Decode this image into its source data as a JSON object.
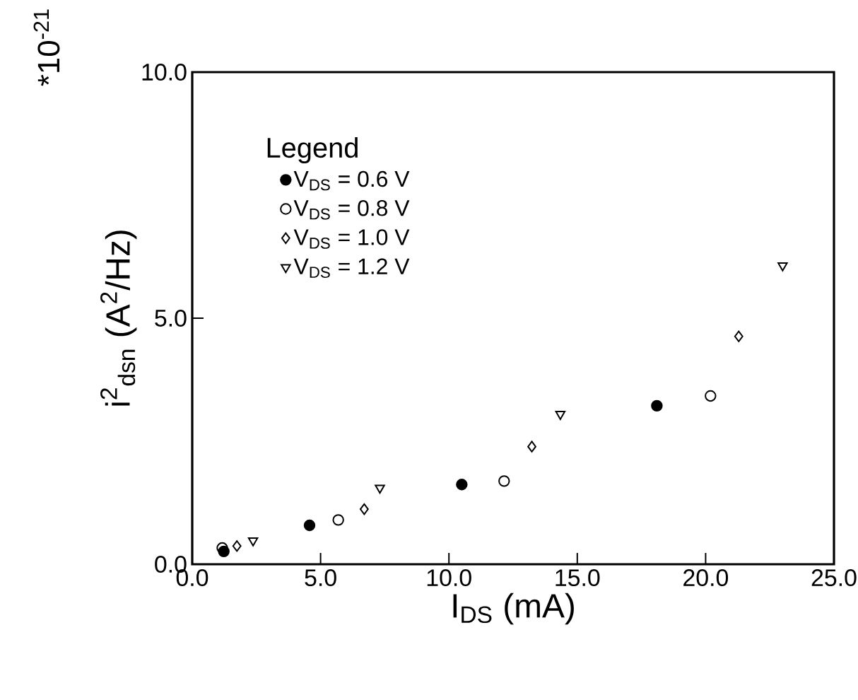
{
  "chart_data": {
    "type": "scatter",
    "xlabel": "I$_{DS}$ (mA)",
    "ylabel": "i$^{2}$$_{dsn}$ (A$^{2}$/Hz)",
    "legend_title": "Legend",
    "annotations": [
      "*10$^{-21}$"
    ],
    "xlim": [
      0,
      25
    ],
    "ylim": [
      0,
      10
    ],
    "xticks": [
      {
        "value": 0,
        "label": "0.0"
      },
      {
        "value": 5,
        "label": "5.0"
      },
      {
        "value": 10,
        "label": "10.0"
      },
      {
        "value": 15,
        "label": "15.0"
      },
      {
        "value": 20,
        "label": "20.0"
      },
      {
        "value": 25,
        "label": "25.0"
      }
    ],
    "yticks": [
      {
        "value": 0,
        "label": "0.0"
      },
      {
        "value": 5,
        "label": "5.0"
      },
      {
        "value": 10,
        "label": "10.0"
      }
    ],
    "legend": "top left",
    "grid": false,
    "series": [
      {
        "name": "V$_{DS}$ = 0.6 V",
        "color": "#000000",
        "marker": "circle",
        "x": [
          1.23,
          4.57,
          10.5,
          18.1
        ],
        "values": [
          0.26,
          0.79,
          1.62,
          3.22
        ]
      },
      {
        "name": "V$_{DS}$ = 0.8 V",
        "color": "#000000",
        "marker": "circle",
        "x": [
          1.17,
          5.69,
          12.15,
          20.19
        ],
        "values": [
          0.33,
          0.9,
          1.69,
          3.42
        ]
      },
      {
        "name": "V$_{DS}$ = 1.0 V",
        "color": "#000000",
        "marker": "diamond",
        "x": [
          1.74,
          6.7,
          13.23,
          21.29
        ],
        "values": [
          0.37,
          1.12,
          2.39,
          4.63
        ]
      },
      {
        "name": "V$_{DS}$ = 1.2 V",
        "color": "#000000",
        "marker": "triangle",
        "x": [
          2.37,
          7.31,
          14.34,
          23.0
        ],
        "values": [
          0.48,
          1.55,
          3.05,
          6.07
        ]
      }
    ]
  }
}
